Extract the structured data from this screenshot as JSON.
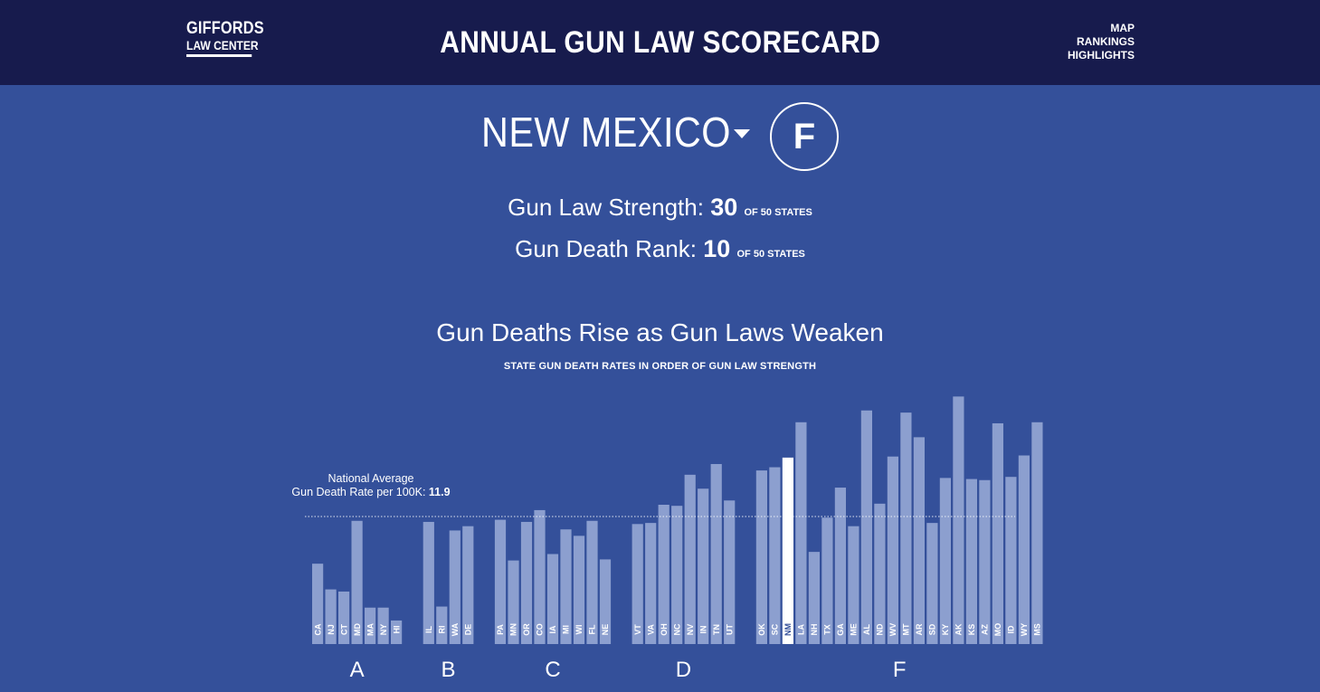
{
  "header": {
    "logo_line1": "GIFFORDS",
    "logo_line2": "LAW CENTER",
    "title": "ANNUAL GUN LAW SCORECARD",
    "nav": [
      "MAP",
      "RANKINGS",
      "HIGHLIGHTS"
    ]
  },
  "state": {
    "name": "NEW MEXICO",
    "grade": "F",
    "law_strength_label": "Gun Law Strength:",
    "law_strength_value": "30",
    "death_rank_label": "Gun Death Rank:",
    "death_rank_value": "10",
    "of_states": "OF 50 STATES"
  },
  "colors": {
    "header_bg": "#171b4d",
    "page_bg": "#34509a",
    "bar": "#8c9fcf",
    "highlight_bar": "#ffffff"
  },
  "chart_data": {
    "type": "bar",
    "title": "Gun Deaths Rise as Gun Laws Weaken",
    "subtitle": "STATE GUN DEATH RATES IN ORDER OF GUN LAW STRENGTH",
    "average_label_line1": "National Average",
    "average_label_line2": "Gun Death Rate per 100K:",
    "average_value": 11.9,
    "ylim": [
      0,
      26
    ],
    "highlight": "NM",
    "groups": [
      {
        "grade": "A",
        "states": [
          "CA",
          "NJ",
          "CT",
          "MD",
          "MA",
          "NY",
          "HI"
        ],
        "values": [
          7.5,
          5.1,
          4.9,
          11.5,
          3.4,
          3.4,
          2.2
        ]
      },
      {
        "grade": "B",
        "states": [
          "IL",
          "RI",
          "WA",
          "DE"
        ],
        "values": [
          11.4,
          3.5,
          10.6,
          11.0
        ]
      },
      {
        "grade": "C",
        "states": [
          "PA",
          "MN",
          "OR",
          "CO",
          "IA",
          "MI",
          "WI",
          "FL",
          "NE"
        ],
        "values": [
          11.6,
          7.8,
          11.4,
          12.5,
          8.4,
          10.7,
          10.1,
          11.5,
          7.9
        ]
      },
      {
        "grade": "D",
        "states": [
          "VT",
          "VA",
          "OH",
          "NC",
          "NV",
          "IN",
          "TN",
          "UT"
        ],
        "values": [
          11.2,
          11.3,
          13.0,
          12.9,
          15.8,
          14.5,
          16.8,
          13.4
        ]
      },
      {
        "grade": "F",
        "states": [
          "OK",
          "SC",
          "NM",
          "LA",
          "NH",
          "TX",
          "GA",
          "ME",
          "AL",
          "ND",
          "WV",
          "MT",
          "AR",
          "SD",
          "KY",
          "AK",
          "KS",
          "AZ",
          "MO",
          "ID",
          "WY",
          "MS"
        ],
        "values": [
          16.2,
          16.5,
          17.4,
          20.7,
          8.6,
          11.8,
          14.6,
          11.0,
          21.8,
          13.1,
          17.5,
          21.6,
          19.3,
          11.3,
          15.5,
          23.1,
          15.4,
          15.3,
          20.6,
          15.6,
          17.6,
          20.7
        ]
      }
    ]
  }
}
